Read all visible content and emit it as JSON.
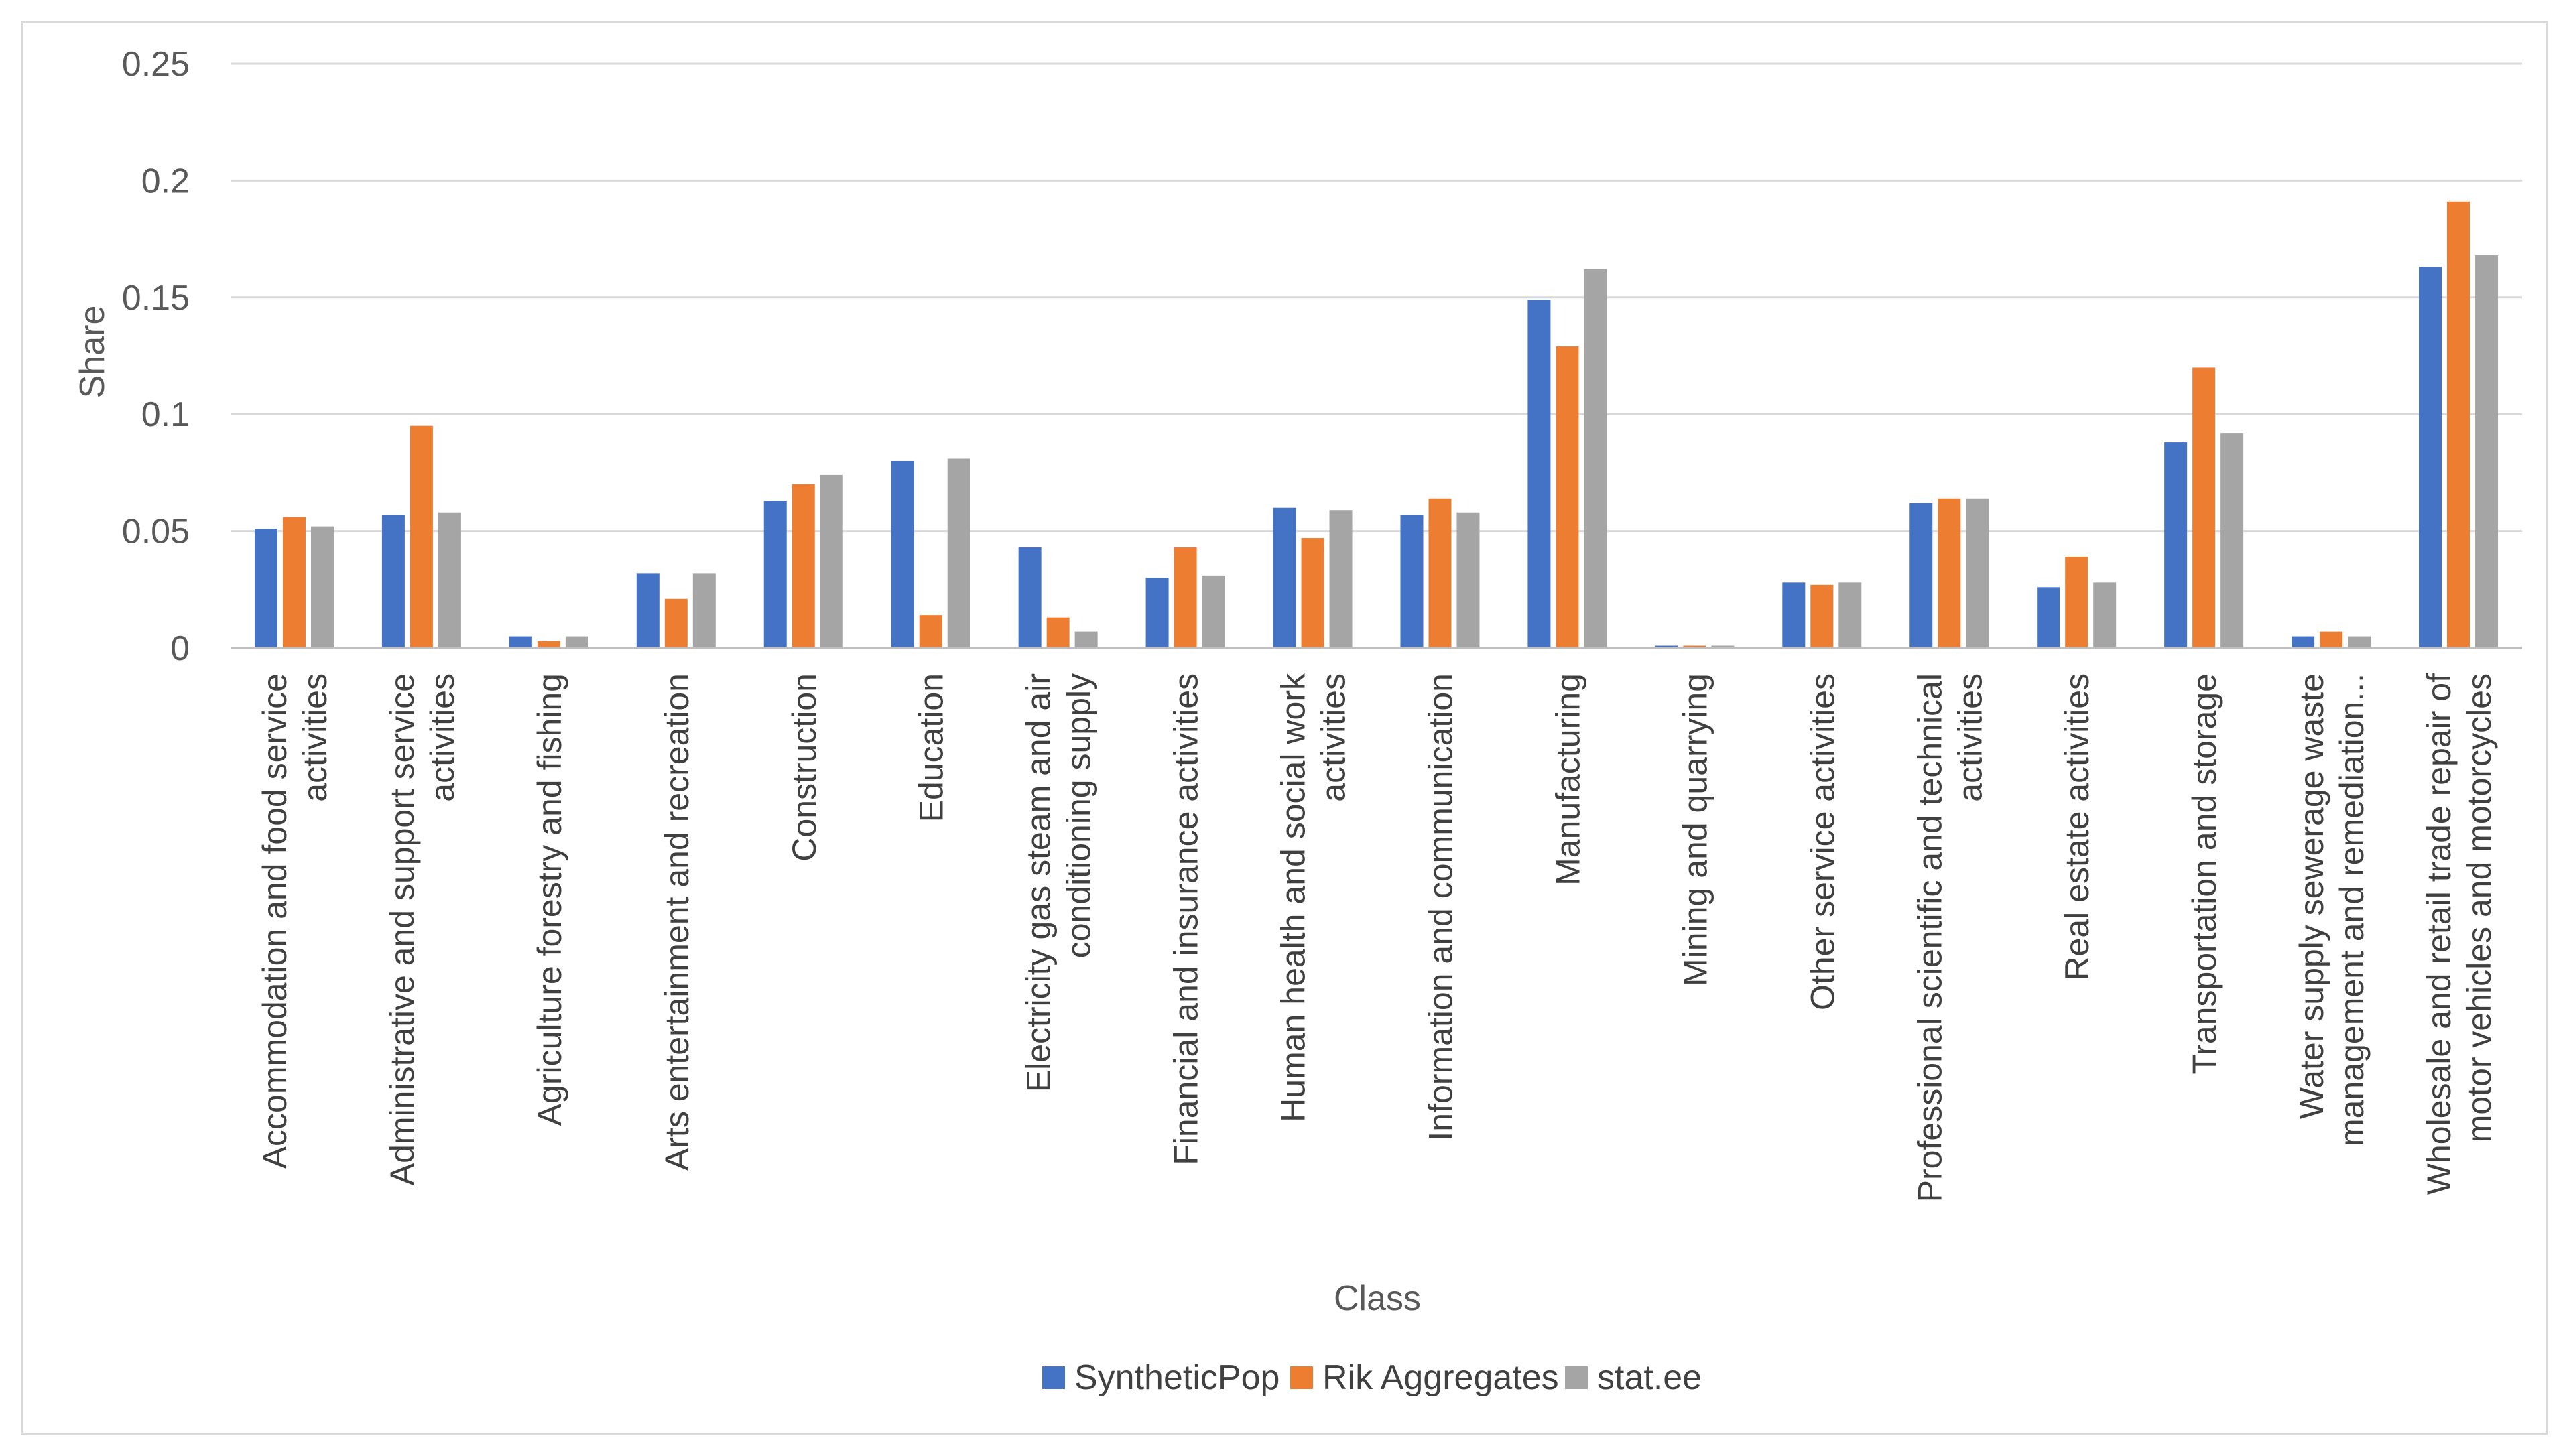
{
  "chart_data": {
    "type": "bar",
    "title": "",
    "xlabel": "Class",
    "ylabel": "Share",
    "ylim": [
      0,
      0.25
    ],
    "yticks": [
      "0",
      "0.05",
      "0.1",
      "0.15",
      "0.2",
      "0.25"
    ],
    "grid": true,
    "legend_position": "bottom",
    "categories": [
      [
        "Accommodation and food service",
        "activities"
      ],
      [
        "Administrative and support service",
        "activities"
      ],
      [
        "Agriculture forestry and fishing"
      ],
      [
        "Arts entertainment and recreation"
      ],
      [
        "Construction"
      ],
      [
        "Education"
      ],
      [
        "Electricity gas steam and air",
        "conditioning supply"
      ],
      [
        "Financial and insurance activities"
      ],
      [
        "Human health and social work",
        "activities"
      ],
      [
        "Information and communication"
      ],
      [
        "Manufacturing"
      ],
      [
        "Mining and quarrying"
      ],
      [
        "Other service activities"
      ],
      [
        "Professional scientific and technical",
        "activities"
      ],
      [
        "Real estate activities"
      ],
      [
        "Transportation and storage"
      ],
      [
        "Water supply sewerage waste",
        "management and remediation..."
      ],
      [
        "Wholesale and retail trade repair of",
        "motor vehicles and motorcycles"
      ]
    ],
    "series": [
      {
        "name": "SyntheticPop",
        "color": "#4472c4",
        "values": [
          0.051,
          0.057,
          0.005,
          0.032,
          0.063,
          0.08,
          0.043,
          0.03,
          0.06,
          0.057,
          0.149,
          0.001,
          0.028,
          0.062,
          0.026,
          0.088,
          0.005,
          0.163
        ]
      },
      {
        "name": "Rik Aggregates",
        "color": "#ed7d31",
        "values": [
          0.056,
          0.095,
          0.003,
          0.021,
          0.07,
          0.014,
          0.013,
          0.043,
          0.047,
          0.064,
          0.129,
          0.001,
          0.027,
          0.064,
          0.039,
          0.12,
          0.007,
          0.191
        ]
      },
      {
        "name": "stat.ee",
        "color": "#a5a5a5",
        "values": [
          0.052,
          0.058,
          0.005,
          0.032,
          0.074,
          0.081,
          0.007,
          0.031,
          0.059,
          0.058,
          0.162,
          0.001,
          0.028,
          0.064,
          0.028,
          0.092,
          0.005,
          0.168
        ]
      }
    ]
  }
}
